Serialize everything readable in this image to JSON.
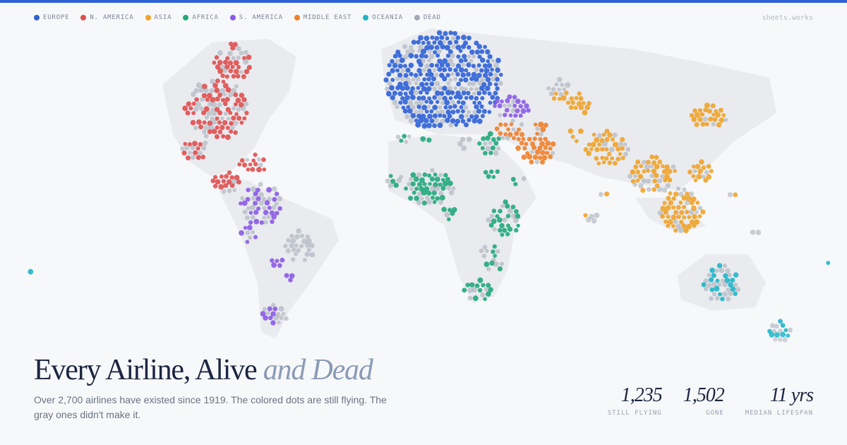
{
  "legend": [
    {
      "label": "EUROPE",
      "color": "#2f62d6"
    },
    {
      "label": "N. AMERICA",
      "color": "#e04f4f"
    },
    {
      "label": "ASIA",
      "color": "#f0a32a"
    },
    {
      "label": "AFRICA",
      "color": "#22a97a"
    },
    {
      "label": "S. AMERICA",
      "color": "#8b5be6"
    },
    {
      "label": "MIDDLE EAST",
      "color": "#f07f2a"
    },
    {
      "label": "OCEANIA",
      "color": "#1fb5c9"
    },
    {
      "label": "DEAD",
      "color": "#a3a8b3"
    }
  ],
  "brand": "sheets.works",
  "title": {
    "main": "Every Airline, Alive",
    "accent": "and Dead"
  },
  "subtitle": "Over 2,700 airlines have existed since 1919. The colored dots are still flying. The gray ones didn't make it.",
  "stats": [
    {
      "value": "1,235",
      "label": "STILL FLYING"
    },
    {
      "value": "1,502",
      "label": "GONE"
    },
    {
      "value": "11 yrs",
      "label": "MEDIAN LIFESPAN"
    }
  ]
}
